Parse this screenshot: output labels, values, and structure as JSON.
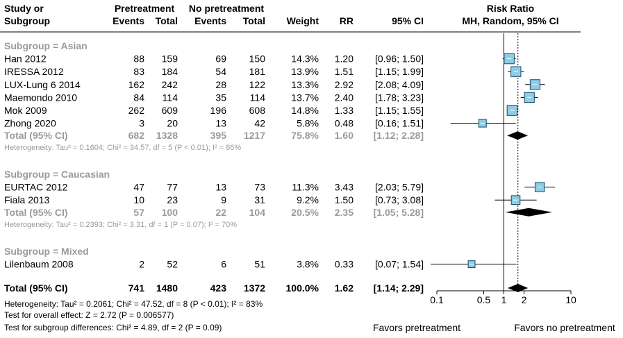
{
  "chart_data": {
    "type": "forest",
    "header": {
      "study_line1": "Study or",
      "study_line2": "Subgroup",
      "group1_title": "Pretreatment",
      "group2_title": "No pretreatment",
      "events": "Events",
      "total": "Total",
      "weight": "Weight",
      "rr": "RR",
      "ci": "95% CI",
      "plot_title1": "Risk Ratio",
      "plot_title2": "MH, Random, 95% CI"
    },
    "subgroups": [
      {
        "label": "Subgroup = Asian",
        "studies": [
          {
            "name": "Han 2012",
            "e1": "88",
            "n1": "159",
            "e2": "69",
            "n2": "150",
            "weight": "14.3%",
            "rr": "1.20",
            "ci": "[0.96; 1.50]",
            "est": 1.2,
            "lo": 0.96,
            "hi": 1.5,
            "w": 14.3
          },
          {
            "name": "IRESSA 2012",
            "e1": "83",
            "n1": "184",
            "e2": "54",
            "n2": "181",
            "weight": "13.9%",
            "rr": "1.51",
            "ci": "[1.15; 1.99]",
            "est": 1.51,
            "lo": 1.15,
            "hi": 1.99,
            "w": 13.9
          },
          {
            "name": "LUX-Lung 6 2014",
            "e1": "162",
            "n1": "242",
            "e2": "28",
            "n2": "122",
            "weight": "13.3%",
            "rr": "2.92",
            "ci": "[2.08; 4.09]",
            "est": 2.92,
            "lo": 2.08,
            "hi": 4.09,
            "w": 13.3
          },
          {
            "name": "Maemondo 2010",
            "e1": "84",
            "n1": "114",
            "e2": "35",
            "n2": "114",
            "weight": "13.7%",
            "rr": "2.40",
            "ci": "[1.78; 3.23]",
            "est": 2.4,
            "lo": 1.78,
            "hi": 3.23,
            "w": 13.7
          },
          {
            "name": "Mok 2009",
            "e1": "262",
            "n1": "609",
            "e2": "196",
            "n2": "608",
            "weight": "14.8%",
            "rr": "1.33",
            "ci": "[1.15; 1.55]",
            "est": 1.33,
            "lo": 1.15,
            "hi": 1.55,
            "w": 14.8
          },
          {
            "name": "Zhong 2020",
            "e1": "3",
            "n1": "20",
            "e2": "13",
            "n2": "42",
            "weight": "5.8%",
            "rr": "0.48",
            "ci": "[0.16; 1.51]",
            "est": 0.48,
            "lo": 0.16,
            "hi": 1.51,
            "w": 5.8
          }
        ],
        "total": {
          "name": "Total (95% CI)",
          "e1": "682",
          "n1": "1328",
          "e2": "395",
          "n2": "1217",
          "weight": "75.8%",
          "rr": "1.60",
          "ci": "[1.12; 2.28]",
          "est": 1.6,
          "lo": 1.12,
          "hi": 2.28
        },
        "heterogeneity": "Heterogeneity: Tau² = 0.1604; Chi² = 34.57, df = 5 (P < 0.01); I² = 86%"
      },
      {
        "label": "Subgroup = Caucasian",
        "studies": [
          {
            "name": "EURTAC 2012",
            "e1": "47",
            "n1": "77",
            "e2": "13",
            "n2": "73",
            "weight": "11.3%",
            "rr": "3.43",
            "ci": "[2.03; 5.79]",
            "est": 3.43,
            "lo": 2.03,
            "hi": 5.79,
            "w": 11.3
          },
          {
            "name": "Fiala 2013",
            "e1": "10",
            "n1": "23",
            "e2": "9",
            "n2": "31",
            "weight": "9.2%",
            "rr": "1.50",
            "ci": "[0.73; 3.08]",
            "est": 1.5,
            "lo": 0.73,
            "hi": 3.08,
            "w": 9.2
          }
        ],
        "total": {
          "name": "Total (95% CI)",
          "e1": "57",
          "n1": "100",
          "e2": "22",
          "n2": "104",
          "weight": "20.5%",
          "rr": "2.35",
          "ci": "[1.05; 5.28]",
          "est": 2.35,
          "lo": 1.05,
          "hi": 5.28
        },
        "heterogeneity": "Heterogeneity: Tau² = 0.2393; Chi² = 3.31, df = 1 (P = 0.07); I² = 70%"
      },
      {
        "label": "Subgroup = Mixed",
        "studies": [
          {
            "name": "Lilenbaum 2008",
            "e1": "2",
            "n1": "52",
            "e2": "6",
            "n2": "51",
            "weight": "3.8%",
            "rr": "0.33",
            "ci": "[0.07; 1.54]",
            "est": 0.33,
            "lo": 0.07,
            "hi": 1.54,
            "w": 3.8
          }
        ],
        "total": null,
        "heterogeneity": ""
      }
    ],
    "overall": {
      "name": "Total (95% CI)",
      "e1": "741",
      "n1": "1480",
      "e2": "423",
      "n2": "1372",
      "weight": "100.0%",
      "rr": "1.62",
      "ci": "[1.14; 2.29]",
      "est": 1.62,
      "lo": 1.14,
      "hi": 2.29
    },
    "footer_lines": [
      "Heterogeneity: Tau² = 0.2061; Chi² = 47.52, df = 8 (P < 0.01); I² = 83%",
      "Test for overall effect: Z = 2.72 (P = 0.006577)",
      "Test for subgroup differences: Chi² = 4.89, df = 2 (P = 0.09)"
    ],
    "x_axis": {
      "scale": "log",
      "ticks": [
        0.1,
        0.5,
        1,
        2,
        10
      ],
      "tick_labels": [
        "0.1",
        "0.5",
        "1",
        "2",
        "10"
      ],
      "xlim": [
        0.1,
        10
      ],
      "null_value": 1
    },
    "favors_left": "Favors pretreatment",
    "favors_right": "Favors no pretreatment",
    "colors": {
      "box_fill": "#8ecde6",
      "box_stroke": "#1a4a66",
      "subgroup_text": "#9a9a9a",
      "hetero_text": "#9a9a9a",
      "diamond": "#000000"
    }
  }
}
